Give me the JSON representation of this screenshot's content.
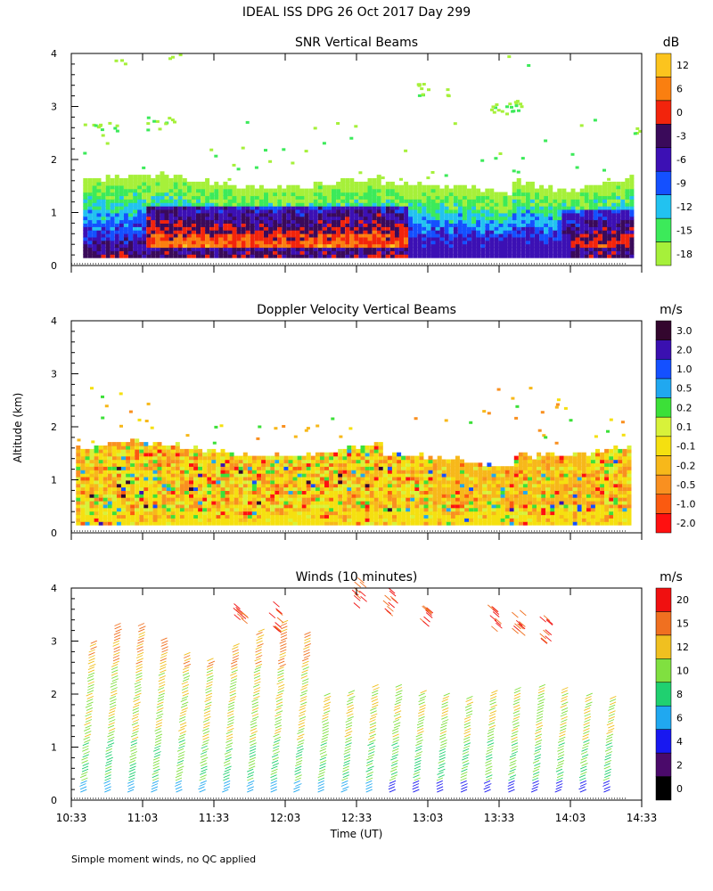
{
  "figure_title": "IDEAL ISS DPG  26 Oct 2017 Day 299",
  "footer_note": "Simple moment winds, no QC applied",
  "colors": {
    "frame": "#000000",
    "background": "#ffffff"
  },
  "chart_data": [
    {
      "type": "heatmap",
      "title": "SNR Vertical Beams",
      "ylabel": "",
      "ylim": [
        0,
        4
      ],
      "yticks": [
        "0",
        "1",
        "2",
        "3",
        "4"
      ],
      "xlim": [
        "10:33",
        "14:33"
      ],
      "colorbar": {
        "unit": "dB",
        "labels": [
          "-18",
          "-15",
          "-12",
          "-9",
          "-6",
          "-3",
          "0",
          "6",
          "12"
        ],
        "colors": [
          "#a6f03a",
          "#3cea5a",
          "#22c2f0",
          "#1450ff",
          "#3c10b4",
          "#3a0a5a",
          "#f2240c",
          "#fa7f10",
          "#fcc41e"
        ]
      }
    },
    {
      "type": "heatmap",
      "title": "Doppler Velocity Vertical Beams",
      "ylabel": "Altitude (km)",
      "ylim": [
        0,
        4
      ],
      "yticks": [
        "0",
        "1",
        "2",
        "3",
        "4"
      ],
      "xlim": [
        "10:33",
        "14:33"
      ],
      "colorbar": {
        "unit": "m/s",
        "labels": [
          "-2.0",
          "-1.0",
          "-0.5",
          "-0.2",
          "-0.1",
          "0.1",
          "0.2",
          "0.5",
          "1.0",
          "2.0",
          "3.0"
        ],
        "colors": [
          "#ff1010",
          "#fb5a10",
          "#f99020",
          "#f7b81a",
          "#f5e010",
          "#d8f23a",
          "#3ce038",
          "#20a8f0",
          "#1450ff",
          "#3a10b0",
          "#33062e"
        ]
      }
    },
    {
      "type": "scatter",
      "title": "Winds (10 minutes)",
      "xlabel": "Time (UT)",
      "ylabel": "",
      "ylim": [
        0,
        4
      ],
      "yticks": [
        "0",
        "1",
        "2",
        "3",
        "4"
      ],
      "xticks": [
        "10:33",
        "11:03",
        "11:33",
        "12:03",
        "12:33",
        "13:03",
        "13:33",
        "14:03",
        "14:33"
      ],
      "xlim": [
        "10:33",
        "14:33"
      ],
      "colorbar": {
        "unit": "m/s",
        "labels": [
          "0",
          "2",
          "4",
          "6",
          "8",
          "10",
          "12",
          "15",
          "20"
        ],
        "colors": [
          "#000000",
          "#4a0a6a",
          "#1818f0",
          "#20a8f0",
          "#20d070",
          "#80e040",
          "#f0c020",
          "#f07020",
          "#f01010"
        ]
      },
      "profile_times": [
        "10:33",
        "10:43",
        "10:53",
        "11:03",
        "11:13",
        "11:23",
        "11:33",
        "11:43",
        "11:53",
        "12:03",
        "12:13",
        "12:23",
        "12:33",
        "12:43",
        "12:53",
        "13:03",
        "13:13",
        "13:23",
        "13:33",
        "13:43",
        "13:53",
        "14:03",
        "14:13"
      ]
    }
  ]
}
